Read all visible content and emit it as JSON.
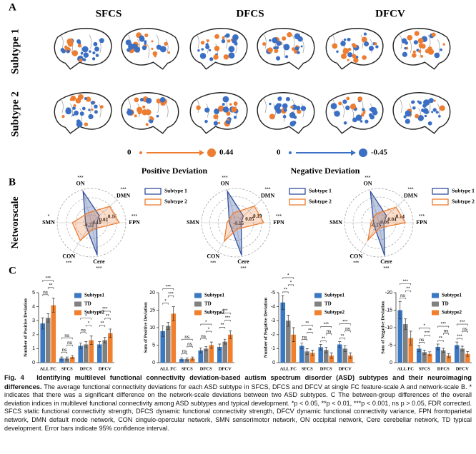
{
  "figure_a": {
    "label": "A",
    "columns": [
      "SFCS",
      "DFCS",
      "DFCV"
    ],
    "rows": [
      "Subtype 1",
      "Subtype 2"
    ],
    "positive_legend": {
      "min": "0",
      "max": "0.44",
      "title": "Positive Deviation"
    },
    "negative_legend": {
      "min": "0",
      "max": "-0.45",
      "title": "Negative Deviation"
    }
  },
  "figure_b": {
    "label": "B",
    "row_label": "Networscale",
    "charts": [
      {
        "type": "radar",
        "axes": [
          "ON",
          "DMN",
          "FPN",
          "Cere",
          "CON",
          "SMN"
        ],
        "significance": [
          "***",
          "***",
          "***",
          "***",
          "***",
          "*"
        ],
        "rlim": [
          -0.22,
          0.3
        ],
        "rticks": [
          0.16,
          0.02,
          {
            "value": -0.1,
            "label": "-0.10"
          },
          -0.22
        ],
        "series": [
          {
            "name": "Subtype 1",
            "color": "#2f4f9e",
            "values": [
              0.27,
              -0.06,
              -0.14,
              0.28,
              -0.1,
              -0.13
            ]
          },
          {
            "name": "Subtype 2",
            "color": "#ed7d31",
            "values": [
              -0.06,
              0.15,
              0.2,
              -0.12,
              0.1,
              0.07
            ]
          }
        ]
      },
      {
        "type": "radar",
        "axes": [
          "ON",
          "DMN",
          "FPN",
          "Cere",
          "CON",
          "SMN"
        ],
        "significance": [
          "***",
          "***",
          "***",
          "***",
          "***",
          null
        ],
        "rlim": [
          -0.25,
          0.33
        ],
        "rticks": [
          0.19,
          0.05,
          -0.15
        ],
        "series": [
          {
            "name": "Subtype 1",
            "color": "#2f4f9e",
            "values": [
              0.3,
              -0.08,
              -0.16,
              0.31,
              -0.12,
              -0.14
            ]
          },
          {
            "name": "Subtype 2",
            "color": "#ed7d31",
            "values": [
              -0.08,
              0.17,
              0.22,
              -0.14,
              0.12,
              -0.1
            ]
          }
        ]
      },
      {
        "type": "radar",
        "axes": [
          "ON",
          "DMN",
          "FPN",
          "Cere",
          "CON",
          "SMN"
        ],
        "significance": [
          "***",
          "***",
          "***",
          "***",
          "***",
          null
        ],
        "rlim": [
          -0.16,
          0.24
        ],
        "rticks": [
          0.14,
          0.04,
          -0.06,
          -0.16
        ],
        "series": [
          {
            "name": "Subtype 1",
            "color": "#2f4f9e",
            "values": [
              0.22,
              -0.04,
              -0.1,
              0.23,
              -0.08,
              -0.1
            ]
          },
          {
            "name": "Subtype 2",
            "color": "#ed7d31",
            "values": [
              -0.05,
              0.11,
              0.15,
              -0.1,
              0.08,
              -0.07
            ]
          }
        ]
      }
    ]
  },
  "figure_c": {
    "label": "C",
    "charts": [
      {
        "type": "bar",
        "ylabel": "Number of Positive Deviation",
        "categories": [
          "ALL FC",
          "SFCS",
          "DFCS",
          "DFCV"
        ],
        "ylim": [
          0,
          5
        ],
        "yticks": [
          0,
          1,
          2,
          3,
          4,
          5
        ],
        "series": [
          {
            "name": "Subtype1",
            "color": "#3a78c2",
            "values": [
              2.8,
              0.3,
              1.2,
              1.3
            ],
            "errors": [
              0.4,
              0.1,
              0.2,
              0.2
            ]
          },
          {
            "name": "TD",
            "color": "#808080",
            "values": [
              3.2,
              0.3,
              1.3,
              1.6
            ],
            "errors": [
              0.3,
              0.1,
              0.2,
              0.2
            ]
          },
          {
            "name": "Subtype2",
            "color": "#f07f2e",
            "values": [
              4.1,
              0.4,
              1.6,
              2.1
            ],
            "errors": [
              0.5,
              0.1,
              0.3,
              0.3
            ]
          }
        ],
        "significance": [
          [
            "***",
            "**",
            "ns"
          ],
          [
            "ns",
            "ns",
            "ns"
          ],
          [
            "*",
            "*",
            "ns"
          ],
          [
            "***",
            "**",
            "**"
          ]
        ]
      },
      {
        "type": "bar",
        "ylabel": "Sum of Positive Deviation",
        "categories": [
          "ALL FC",
          "SFCS",
          "DFCS",
          "DFCV"
        ],
        "ylim": [
          0,
          20
        ],
        "yticks": [
          0,
          5,
          10,
          15,
          20
        ],
        "series": [
          {
            "name": "Subtype1",
            "color": "#3a78c2",
            "values": [
              9,
              1,
              3.5,
              4.5
            ],
            "errors": [
              1.5,
              0.3,
              0.7,
              0.8
            ]
          },
          {
            "name": "TD",
            "color": "#808080",
            "values": [
              10.5,
              1,
              4,
              6
            ],
            "errors": [
              1,
              0.3,
              0.6,
              0.7
            ]
          },
          {
            "name": "Subtype2",
            "color": "#f07f2e",
            "values": [
              14,
              1.2,
              5,
              8
            ],
            "errors": [
              2,
              0.4,
              0.9,
              1.1
            ]
          }
        ],
        "significance": [
          [
            "***",
            "***",
            "*"
          ],
          [
            "ns",
            "ns",
            "ns"
          ],
          [
            "*",
            "*",
            "ns"
          ],
          [
            "***",
            "***",
            "**"
          ]
        ]
      },
      {
        "type": "bar",
        "ylabel": "Number of Negative Deviation",
        "categories": [
          "ALL FC",
          "SFCS",
          "DFCS",
          "DFCV"
        ],
        "ylim": [
          0,
          -5
        ],
        "yticks": [
          0,
          -1,
          -2,
          -3,
          -4,
          -5
        ],
        "series": [
          {
            "name": "Subtype1",
            "color": "#3a78c2",
            "values": [
              -4.3,
              -1.2,
              -1.1,
              -1.3
            ],
            "errors": [
              0.5,
              0.2,
              0.2,
              0.2
            ]
          },
          {
            "name": "TD",
            "color": "#808080",
            "values": [
              -3,
              -0.8,
              -0.9,
              -1
            ],
            "errors": [
              0.4,
              0.2,
              0.2,
              0.2
            ]
          },
          {
            "name": "Subtype2",
            "color": "#f07f2e",
            "values": [
              -2,
              -0.7,
              -0.5,
              -0.5
            ],
            "errors": [
              0.5,
              0.2,
              0.2,
              0.2
            ]
          }
        ],
        "significance": [
          [
            "*",
            "*",
            "**"
          ],
          [
            "**",
            "**",
            "ns"
          ],
          [
            "***",
            "ns",
            "**"
          ],
          [
            "***",
            "ns",
            "**"
          ]
        ]
      },
      {
        "type": "bar",
        "ylabel": "Sum of Negative Deviation",
        "categories": [
          "ALL FC",
          "SFCS",
          "DFCS",
          "DFCV"
        ],
        "ylim": [
          0,
          -20
        ],
        "yticks": [
          0,
          -5,
          -10,
          -15,
          -20
        ],
        "series": [
          {
            "name": "Subtype1",
            "color": "#3a78c2",
            "values": [
              -15,
              -4,
              -4.5,
              -5
            ],
            "errors": [
              2.5,
              0.8,
              0.8,
              0.9
            ]
          },
          {
            "name": "TD",
            "color": "#808080",
            "values": [
              -11,
              -3,
              -3.5,
              -4
            ],
            "errors": [
              1.5,
              0.6,
              0.6,
              0.7
            ]
          },
          {
            "name": "Subtype2",
            "color": "#f07f2e",
            "values": [
              -7,
              -2.5,
              -2,
              -2.5
            ],
            "errors": [
              2,
              0.6,
              0.6,
              0.7
            ]
          }
        ],
        "significance": [
          [
            "***",
            "**",
            "ns"
          ],
          [
            "*",
            "***",
            "ns"
          ],
          [
            "***",
            "ns",
            "**"
          ],
          [
            "***",
            "ns",
            "***"
          ]
        ]
      }
    ]
  },
  "caption": {
    "label": "Fig. 4",
    "title": "Identifying multilevel functional connectivity deviation-based autism spectrum disorder (ASD) subtypes and their neuroimaging differences.",
    "body": "The average functional connectivity deviations for each ASD subtype in SFCS, DFCS and DFCV at single FC feature-scale A and network-scale B. * indicates that there was a significant difference on the network-scale deviations between two ASD subtypes. C The between-group differences of the overall deviation indices in multilevel functional connectivity among ASD subtypes and typical development. *p < 0.05, **p < 0.01, ***p < 0.001, ns p > 0.05, FDR corrected. SFCS static functional connectivity strength, DFCS dynamic functional connectivity strength, DFCV dynamic functional connectivity variance, FPN frontoparietal network, DMN default mode network, CON cingulo-opercular network, SMN sensorimotor network, ON occipital network, Cere cerebellar network, TD typical development. Error bars indicate 95% confidence interval."
  }
}
